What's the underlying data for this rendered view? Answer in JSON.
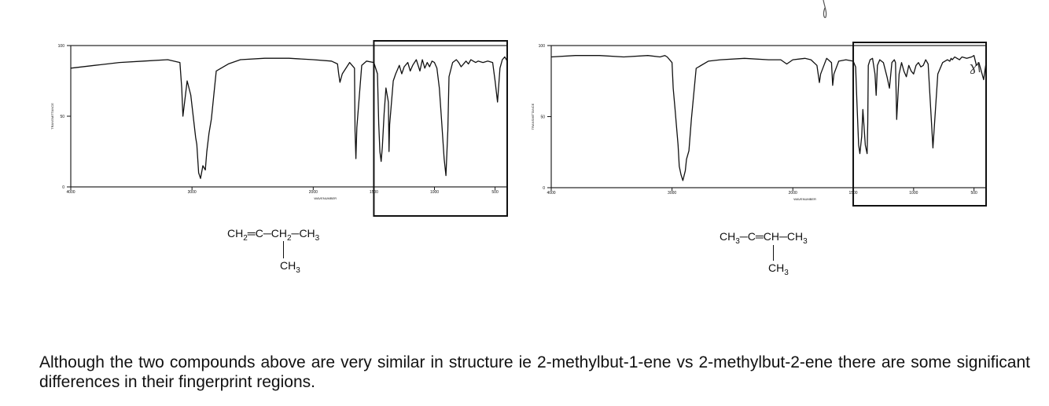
{
  "chart_data": [
    {
      "type": "line",
      "title": "",
      "xlabel": "WAVENUMBER",
      "ylabel": "TRANSMITTANCE",
      "xlim": [
        4000,
        400
      ],
      "ylim": [
        0,
        100
      ],
      "x_ticks": [
        4000,
        3000,
        2000,
        1500,
        1000,
        500
      ],
      "y_ticks": [
        0,
        50,
        100
      ],
      "highlight_region": [
        1500,
        400
      ],
      "series": [
        {
          "x": [
            4000,
            3800,
            3600,
            3400,
            3200,
            3100,
            3085,
            3075,
            3040,
            3010,
            2970,
            2960,
            2945,
            2930,
            2910,
            2890,
            2878,
            2860,
            2840,
            2800,
            2700,
            2600,
            2400,
            2200,
            2000,
            1850,
            1800,
            1790,
            1780,
            1760,
            1700,
            1660,
            1655,
            1648,
            1640,
            1600,
            1560,
            1500,
            1470,
            1460,
            1450,
            1440,
            1430,
            1415,
            1400,
            1380,
            1375,
            1370,
            1340,
            1320,
            1300,
            1290,
            1270,
            1250,
            1220,
            1200,
            1180,
            1150,
            1120,
            1100,
            1080,
            1060,
            1040,
            1020,
            1000,
            980,
            960,
            940,
            920,
            905,
            890,
            880,
            850,
            820,
            800,
            780,
            760,
            740,
            720,
            700,
            680,
            660,
            640,
            600,
            560,
            520,
            500,
            480,
            460,
            440,
            420,
            400
          ],
          "y": [
            84,
            86,
            88,
            89,
            90,
            88,
            70,
            50,
            75,
            65,
            35,
            30,
            10,
            6,
            15,
            12,
            25,
            38,
            48,
            82,
            87,
            90,
            91,
            91,
            90,
            89,
            87,
            80,
            74,
            80,
            88,
            84,
            40,
            20,
            42,
            86,
            89,
            88,
            80,
            45,
            25,
            18,
            28,
            52,
            70,
            60,
            25,
            44,
            75,
            80,
            84,
            86,
            80,
            85,
            88,
            82,
            86,
            90,
            82,
            90,
            84,
            88,
            85,
            89,
            88,
            84,
            70,
            45,
            20,
            8,
            40,
            78,
            88,
            90,
            88,
            85,
            87,
            89,
            87,
            90,
            89,
            88,
            89,
            88,
            89,
            88,
            75,
            60,
            84,
            90,
            92,
            89
          ]
        }
      ],
      "structure": {
        "row": [
          "CH",
          "2",
          "═C─CH",
          "2",
          "─CH",
          "3"
        ],
        "branch": [
          "CH",
          "3"
        ]
      }
    },
    {
      "type": "line",
      "title": "",
      "xlabel": "WAVENUMBER",
      "ylabel": "TRANSMITTANCE",
      "xlim": [
        4000,
        400
      ],
      "ylim": [
        0,
        100
      ],
      "x_ticks": [
        4000,
        3000,
        2000,
        1500,
        1000,
        500
      ],
      "y_ticks": [
        0,
        50,
        100
      ],
      "highlight_region": [
        1500,
        400
      ],
      "series": [
        {
          "x": [
            4000,
            3800,
            3600,
            3400,
            3200,
            3100,
            3060,
            3040,
            3000,
            2990,
            2975,
            2965,
            2950,
            2940,
            2925,
            2910,
            2890,
            2880,
            2860,
            2840,
            2800,
            2700,
            2600,
            2400,
            2200,
            2100,
            2050,
            2000,
            1900,
            1850,
            1800,
            1780,
            1770,
            1720,
            1680,
            1670,
            1660,
            1620,
            1560,
            1500,
            1480,
            1470,
            1455,
            1445,
            1430,
            1420,
            1400,
            1385,
            1380,
            1375,
            1360,
            1340,
            1320,
            1310,
            1300,
            1280,
            1250,
            1220,
            1200,
            1180,
            1160,
            1150,
            1140,
            1120,
            1100,
            1080,
            1060,
            1040,
            1020,
            1000,
            980,
            960,
            940,
            920,
            900,
            880,
            840,
            800,
            760,
            720,
            700,
            690,
            680,
            660,
            640,
            620,
            600,
            560,
            520,
            500,
            480,
            460,
            440,
            420,
            400
          ],
          "y": [
            92,
            93,
            93,
            92,
            93,
            92,
            93,
            92,
            88,
            70,
            55,
            45,
            30,
            15,
            9,
            5,
            12,
            20,
            26,
            48,
            84,
            89,
            90,
            91,
            90,
            90,
            87,
            90,
            91,
            90,
            86,
            74,
            80,
            91,
            88,
            72,
            80,
            89,
            90,
            89,
            85,
            62,
            30,
            24,
            36,
            55,
            30,
            24,
            45,
            86,
            90,
            91,
            80,
            65,
            86,
            90,
            88,
            78,
            70,
            88,
            90,
            88,
            48,
            80,
            88,
            82,
            78,
            86,
            82,
            80,
            86,
            88,
            85,
            86,
            90,
            87,
            28,
            80,
            88,
            90,
            89,
            91,
            90,
            92,
            91,
            90,
            92,
            91,
            92,
            93,
            86,
            88,
            82,
            76,
            88
          ],
          "annotation": "ɣ\\"
        }
      ],
      "structure": {
        "row": [
          "CH",
          "3",
          "─C═CH─CH",
          "3"
        ],
        "branch": [
          "CH",
          "3"
        ]
      }
    }
  ],
  "caption": "Although the two compounds above are very similar in structure ie 2-methylbut-1-ene vs 2-methylbut-2-ene there are some significant differences in their fingerprint regions.",
  "colors": {
    "ink": "#111111",
    "paper": "#ffffff",
    "frame": "#222222"
  }
}
